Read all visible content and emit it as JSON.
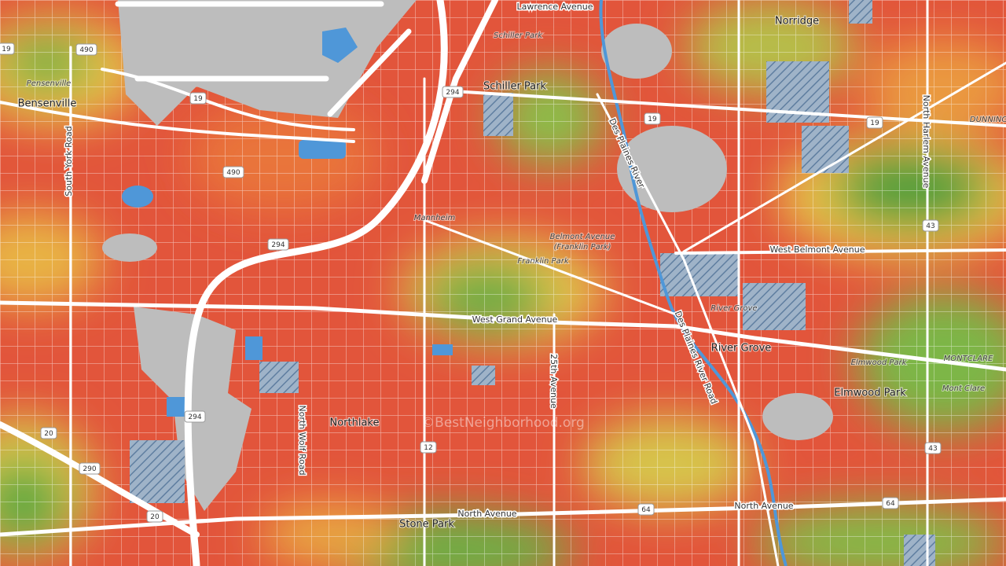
{
  "places": [
    "Norridge",
    "Schiller Park",
    "Bensenville",
    "River Grove",
    "Elmwood Park",
    "Northlake",
    "Stone Park"
  ],
  "neighborhoods": [
    "Schiller Park",
    "Pensenville",
    "Mannheim",
    "Belmont Avenue",
    "(Franklin Park)",
    "Franklin Park",
    "River Grove",
    "Elmwood Park",
    "MONTCLARE",
    "Mont Clare",
    "DUNNING"
  ],
  "roads": [
    "Lawrence Avenue",
    "West Belmont Avenue",
    "West Grand Avenue",
    "North Avenue",
    "North Avenue",
    "25th Avenue",
    "North Wolf Road",
    "South York Road",
    "North Harlem Avenue",
    "Des Plaines River",
    "Des Plaines River Road"
  ],
  "shields": [
    "490",
    "19",
    "19",
    "294",
    "19",
    "19",
    "490",
    "294",
    "43",
    "294",
    "20",
    "290",
    "20",
    "12",
    "64",
    "43",
    "64"
  ],
  "watermark": "©BestNeighborhood.org"
}
